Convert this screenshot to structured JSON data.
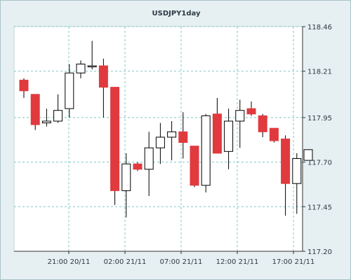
{
  "chart_data": {
    "type": "candlestick",
    "title": "USDJPY1day",
    "ylim": [
      117.2,
      118.46
    ],
    "yticks": [
      "118.46",
      "118.21",
      "117.95",
      "117.70",
      "117.45",
      "117.20"
    ],
    "xticks": [
      "21:00 20/11",
      "02:00 21/11",
      "07:00 21/11",
      "12:00 21/11",
      "17:00 21/11"
    ],
    "grid": true,
    "colors": {
      "bull_fill": "#ffffff",
      "bear_fill": "#e03a3e",
      "wick": "#000000",
      "grid": "#7fc7c7",
      "plot_bg": "#ffffff",
      "outer_bg": "#e6eff1"
    },
    "candles": [
      {
        "open": 118.16,
        "high": 118.17,
        "low": 118.06,
        "close": 118.1
      },
      {
        "open": 118.08,
        "high": 118.08,
        "low": 117.88,
        "close": 117.91
      },
      {
        "open": 117.92,
        "high": 118.0,
        "low": 117.9,
        "close": 117.93
      },
      {
        "open": 117.93,
        "high": 118.08,
        "low": 117.92,
        "close": 117.99
      },
      {
        "open": 118.0,
        "high": 118.25,
        "low": 117.95,
        "close": 118.2
      },
      {
        "open": 118.2,
        "high": 118.27,
        "low": 118.17,
        "close": 118.25
      },
      {
        "open": 118.24,
        "high": 118.38,
        "low": 118.22,
        "close": 118.24
      },
      {
        "open": 118.24,
        "high": 118.28,
        "low": 117.95,
        "close": 118.12
      },
      {
        "open": 118.12,
        "high": 118.12,
        "low": 117.46,
        "close": 117.54
      },
      {
        "open": 117.54,
        "high": 117.75,
        "low": 117.39,
        "close": 117.69
      },
      {
        "open": 117.69,
        "high": 117.7,
        "low": 117.65,
        "close": 117.66
      },
      {
        "open": 117.66,
        "high": 117.87,
        "low": 117.51,
        "close": 117.78
      },
      {
        "open": 117.78,
        "high": 117.92,
        "low": 117.69,
        "close": 117.84
      },
      {
        "open": 117.84,
        "high": 117.93,
        "low": 117.71,
        "close": 117.87
      },
      {
        "open": 117.87,
        "high": 117.98,
        "low": 117.72,
        "close": 117.81
      },
      {
        "open": 117.79,
        "high": 117.79,
        "low": 117.56,
        "close": 117.57
      },
      {
        "open": 117.57,
        "high": 117.97,
        "low": 117.53,
        "close": 117.96
      },
      {
        "open": 117.97,
        "high": 118.06,
        "low": 117.75,
        "close": 117.75
      },
      {
        "open": 117.76,
        "high": 118.0,
        "low": 117.66,
        "close": 117.93
      },
      {
        "open": 117.93,
        "high": 118.05,
        "low": 117.78,
        "close": 117.99
      },
      {
        "open": 118.0,
        "high": 118.04,
        "low": 117.96,
        "close": 117.97
      },
      {
        "open": 117.96,
        "high": 117.97,
        "low": 117.84,
        "close": 117.87
      },
      {
        "open": 117.89,
        "high": 117.89,
        "low": 117.81,
        "close": 117.82
      },
      {
        "open": 117.83,
        "high": 117.85,
        "low": 117.4,
        "close": 117.58
      },
      {
        "open": 117.58,
        "high": 117.75,
        "low": 117.41,
        "close": 117.72
      },
      {
        "open": 117.71,
        "high": 117.77,
        "low": 117.72,
        "close": 117.77
      }
    ]
  }
}
